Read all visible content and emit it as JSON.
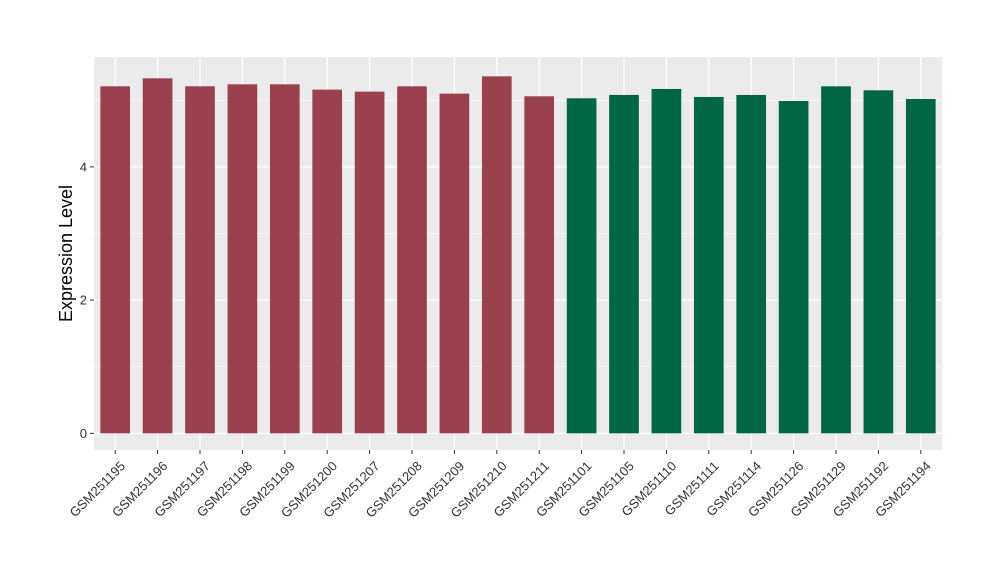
{
  "chart_data": {
    "type": "bar",
    "title": "",
    "xlabel": "",
    "ylabel": "Expression Level",
    "ylim": [
      -0.25,
      5.65
    ],
    "yticks": [
      0,
      2,
      4
    ],
    "grid": true,
    "legend": "none",
    "categories": [
      "GSM251195",
      "GSM251196",
      "GSM251197",
      "GSM251198",
      "GSM251199",
      "GSM251200",
      "GSM251207",
      "GSM251208",
      "GSM251209",
      "GSM251210",
      "GSM251211",
      "GSM251101",
      "GSM251105",
      "GSM251110",
      "GSM251111",
      "GSM251114",
      "GSM251126",
      "GSM251129",
      "GSM251192",
      "GSM251194"
    ],
    "values": [
      5.21,
      5.33,
      5.21,
      5.24,
      5.24,
      5.16,
      5.13,
      5.21,
      5.1,
      5.36,
      5.06,
      5.03,
      5.08,
      5.17,
      5.05,
      5.08,
      4.99,
      5.21,
      5.15,
      5.02
    ],
    "bar_colors": [
      "#9b404f",
      "#9b404f",
      "#9b404f",
      "#9b404f",
      "#9b404f",
      "#9b404f",
      "#9b404f",
      "#9b404f",
      "#9b404f",
      "#9b404f",
      "#9b404f",
      "#006644",
      "#006644",
      "#006644",
      "#006644",
      "#006644",
      "#006644",
      "#006644",
      "#006644",
      "#006644"
    ],
    "panel_background": "#ebebeb",
    "gridline_color": "#ffffff"
  }
}
